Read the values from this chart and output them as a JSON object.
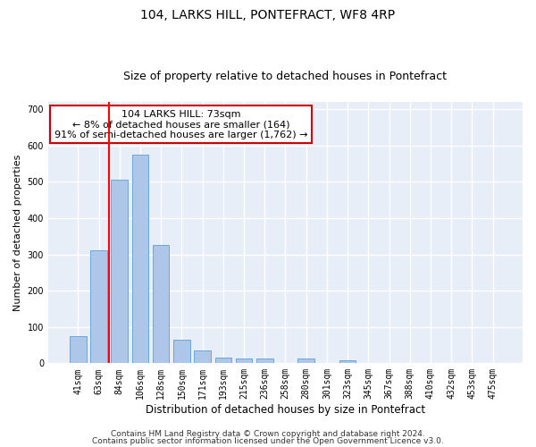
{
  "title1": "104, LARKS HILL, PONTEFRACT, WF8 4RP",
  "title2": "Size of property relative to detached houses in Pontefract",
  "xlabel": "Distribution of detached houses by size in Pontefract",
  "ylabel": "Number of detached properties",
  "categories": [
    "41sqm",
    "63sqm",
    "84sqm",
    "106sqm",
    "128sqm",
    "150sqm",
    "171sqm",
    "193sqm",
    "215sqm",
    "236sqm",
    "258sqm",
    "280sqm",
    "301sqm",
    "323sqm",
    "345sqm",
    "367sqm",
    "388sqm",
    "410sqm",
    "432sqm",
    "453sqm",
    "475sqm"
  ],
  "values": [
    75,
    312,
    505,
    575,
    325,
    65,
    35,
    15,
    12,
    12,
    0,
    12,
    0,
    8,
    0,
    0,
    0,
    0,
    0,
    0,
    0
  ],
  "bar_color": "#aec6e8",
  "bar_edge_color": "#5a9fd4",
  "bar_width": 0.8,
  "red_line_x": 1.5,
  "annotation_text": "104 LARKS HILL: 73sqm\n← 8% of detached houses are smaller (164)\n91% of semi-detached houses are larger (1,762) →",
  "annotation_box_color": "#ffffff",
  "annotation_border_color": "#cc0000",
  "ylim": [
    0,
    720
  ],
  "yticks": [
    0,
    100,
    200,
    300,
    400,
    500,
    600,
    700
  ],
  "bg_color": "#e8eef8",
  "grid_color": "#ffffff",
  "footer1": "Contains HM Land Registry data © Crown copyright and database right 2024.",
  "footer2": "Contains public sector information licensed under the Open Government Licence v3.0.",
  "title1_fontsize": 10,
  "title2_fontsize": 9,
  "xlabel_fontsize": 8.5,
  "ylabel_fontsize": 8,
  "tick_fontsize": 7,
  "annotation_fontsize": 8,
  "footer_fontsize": 6.5
}
